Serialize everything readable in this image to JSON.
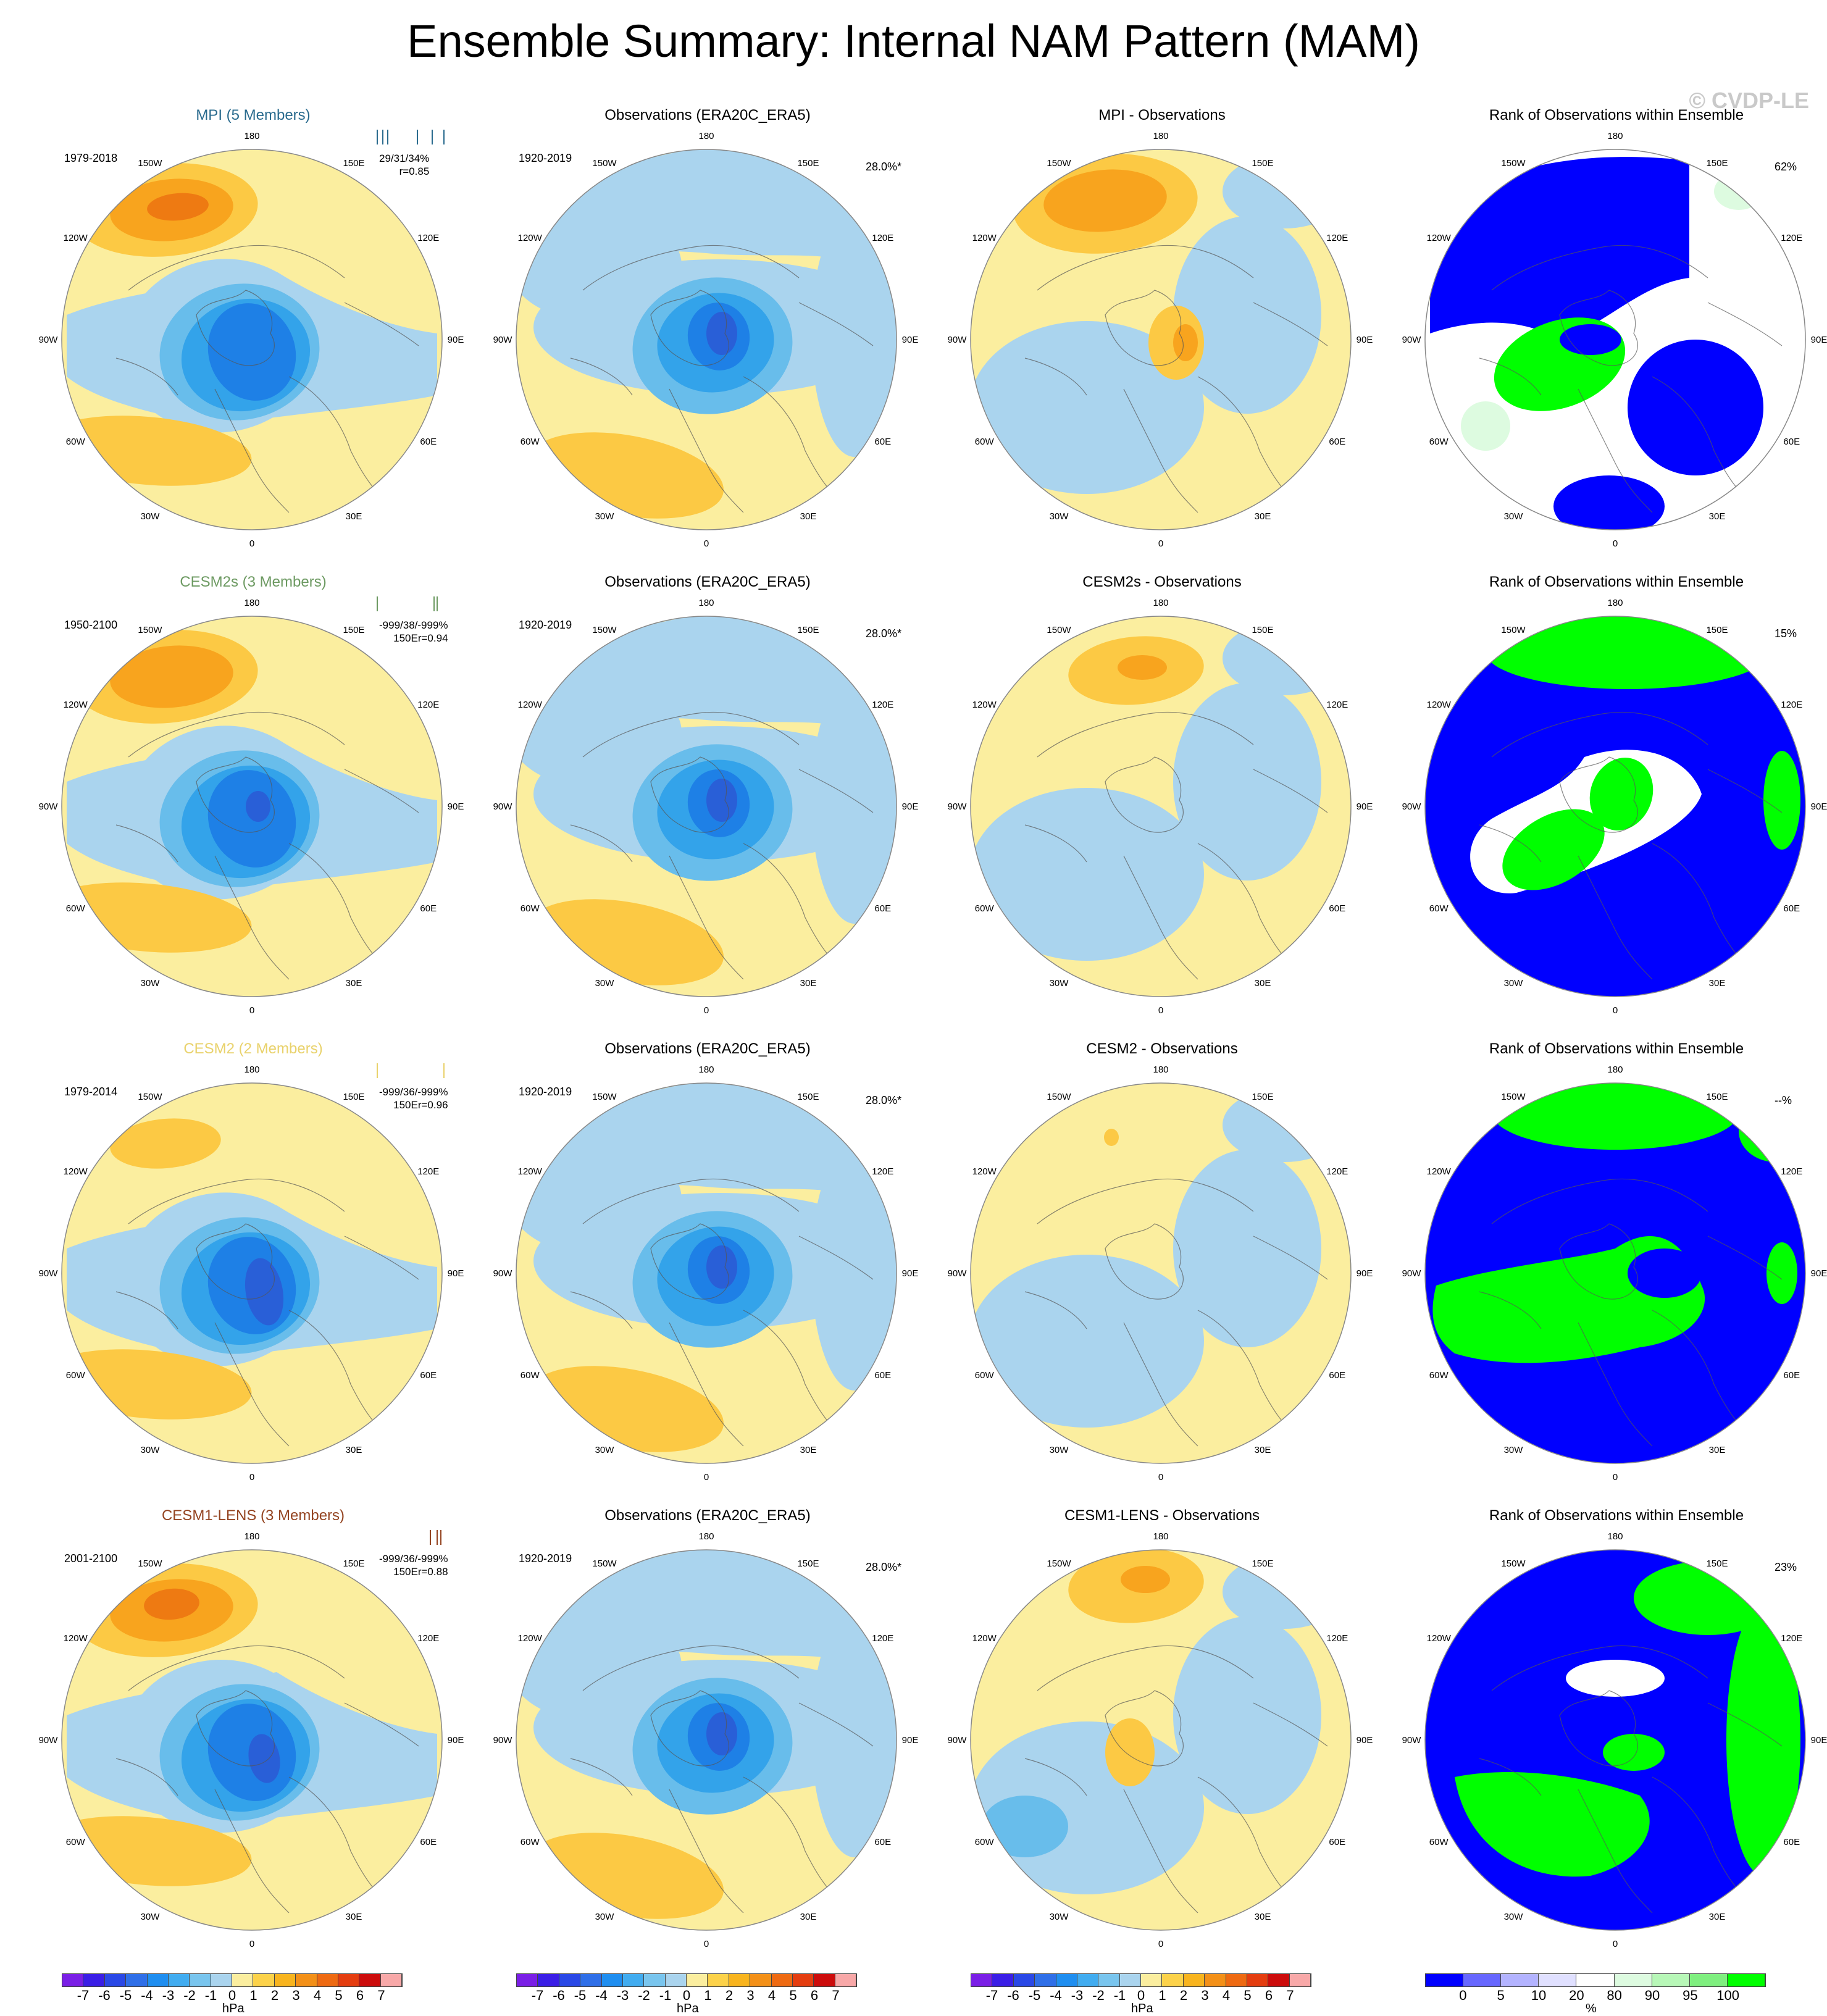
{
  "title": "Ensemble Summary: Internal NAM Pattern (MAM)",
  "watermark": "© CVDP-LE",
  "lon_labels": [
    "180",
    "150E",
    "120E",
    "90E",
    "60E",
    "30E",
    "0",
    "30W",
    "60W",
    "90W",
    "120W",
    "150W"
  ],
  "colors": {
    "yellow": "#fbee9f",
    "lightblue": "#aad4ee",
    "orange1": "#fcc944",
    "orange2": "#f8a41e",
    "orange3": "#ee7a12",
    "blue1": "#68bdeb",
    "blue2": "#33a3ea",
    "blue3": "#1e80e6",
    "blue4": "#295fd7",
    "rank_blue": "#0000ff",
    "rank_green": "#00ff00",
    "rank_paleGreen": "#ddfbe0",
    "white": "#ffffff",
    "mpi": "#2a6b8e",
    "cesm2s": "#6d9a62",
    "cesm2": "#e9d26c",
    "cesm1": "#944421"
  },
  "rows": [
    {
      "model": {
        "title": "MPI (5 Members)",
        "title_color": "#2a6b8e",
        "period": "1979-2018",
        "stats1": "29/31/34%",
        "stats2": "r=0.85",
        "range_ticks": [
          0,
          0.08,
          0.16,
          0.6,
          0.82,
          1.0
        ]
      },
      "obs": {
        "title": "Observations (ERA20C_ERA5)",
        "period": "1920-2019",
        "pct": "28.0%*"
      },
      "diff": {
        "title": "MPI - Observations"
      },
      "rank": {
        "title": "Rank of Observations within Ensemble",
        "pct": "62%"
      }
    },
    {
      "model": {
        "title": "CESM2s (3 Members)",
        "title_color": "#6d9a62",
        "period": "1950-2100",
        "stats1": "-999/38/-999%",
        "stats2": "150Er=0.94",
        "range_ticks": [
          0,
          0.85,
          0.9
        ]
      },
      "obs": {
        "title": "Observations (ERA20C_ERA5)",
        "period": "1920-2019",
        "pct": "28.0%*"
      },
      "diff": {
        "title": "CESM2s - Observations"
      },
      "rank": {
        "title": "Rank of Observations within Ensemble",
        "pct": "15%"
      }
    },
    {
      "model": {
        "title": "CESM2 (2 Members)",
        "title_color": "#e9d26c",
        "period": "1979-2014",
        "stats1": "-999/36/-999%",
        "stats2": "150Er=0.96",
        "range_ticks": [
          0,
          1.0
        ]
      },
      "obs": {
        "title": "Observations (ERA20C_ERA5)",
        "period": "1920-2019",
        "pct": "28.0%*"
      },
      "diff": {
        "title": "CESM2 - Observations"
      },
      "rank": {
        "title": "Rank of Observations within Ensemble",
        "pct": "--%"
      }
    },
    {
      "model": {
        "title": "CESM1-LENS (3 Members)",
        "title_color": "#944421",
        "period": "2001-2100",
        "stats1": "-999/36/-999%",
        "stats2": "150Er=0.88",
        "range_ticks": [
          0.8,
          0.9,
          0.95
        ]
      },
      "obs": {
        "title": "Observations (ERA20C_ERA5)",
        "period": "1920-2019",
        "pct": "28.0%*"
      },
      "diff": {
        "title": "CESM1-LENS - Observations"
      },
      "rank": {
        "title": "Rank of Observations within Ensemble",
        "pct": "23%"
      }
    }
  ],
  "colorbar_hpa": {
    "colors": [
      "#7a1fe6",
      "#3a1ee6",
      "#2a48e6",
      "#2f6fe8",
      "#1f8ef0",
      "#41acf0",
      "#79c5ee",
      "#aad4ee",
      "#fbee9f",
      "#fcd24a",
      "#f8b41e",
      "#f39018",
      "#ee6a12",
      "#e43d10",
      "#cc0c0c",
      "#f8a8a8"
    ],
    "labels": [
      "-7",
      "-6",
      "-5",
      "-4",
      "-3",
      "-2",
      "-1",
      "0",
      "1",
      "2",
      "3",
      "4",
      "5",
      "6",
      "7"
    ],
    "unit": "hPa"
  },
  "colorbar_pct": {
    "colors": [
      "#0000ff",
      "#6767ff",
      "#b3b3ff",
      "#e0e0ff",
      "#ffffff",
      "#ddfbe0",
      "#b7f7b7",
      "#7fef7f",
      "#00ff00"
    ],
    "labels": [
      "0",
      "5",
      "10",
      "20",
      "80",
      "90",
      "95",
      "100"
    ],
    "unit": "%"
  },
  "chart_data": {
    "type": "heatmap",
    "title": "Ensemble Summary: Internal NAM Pattern (MAM)",
    "colorbar_units": [
      "hPa",
      "hPa",
      "hPa",
      "%"
    ],
    "rows": [
      "MPI (5 Members)",
      "CESM2s (3 Members)",
      "CESM2 (2 Members)",
      "CESM1-LENS (3 Members)"
    ],
    "columns": [
      "model",
      "Observations (ERA20C_ERA5)",
      "model - Observations",
      "Rank of Observations within Ensemble"
    ],
    "pattern_correlations": [
      0.85,
      0.94,
      0.96,
      0.88
    ],
    "obs_variance_explained": "28.0%*",
    "rank_percent": [
      "62%",
      "15%",
      "--%",
      "23%"
    ],
    "contour_levels_hpa": [
      -7,
      -6,
      -5,
      -4,
      -3,
      -2,
      -1,
      0,
      1,
      2,
      3,
      4,
      5,
      6,
      7
    ],
    "rank_levels_pct": [
      0,
      5,
      10,
      20,
      80,
      90,
      95,
      100
    ]
  }
}
